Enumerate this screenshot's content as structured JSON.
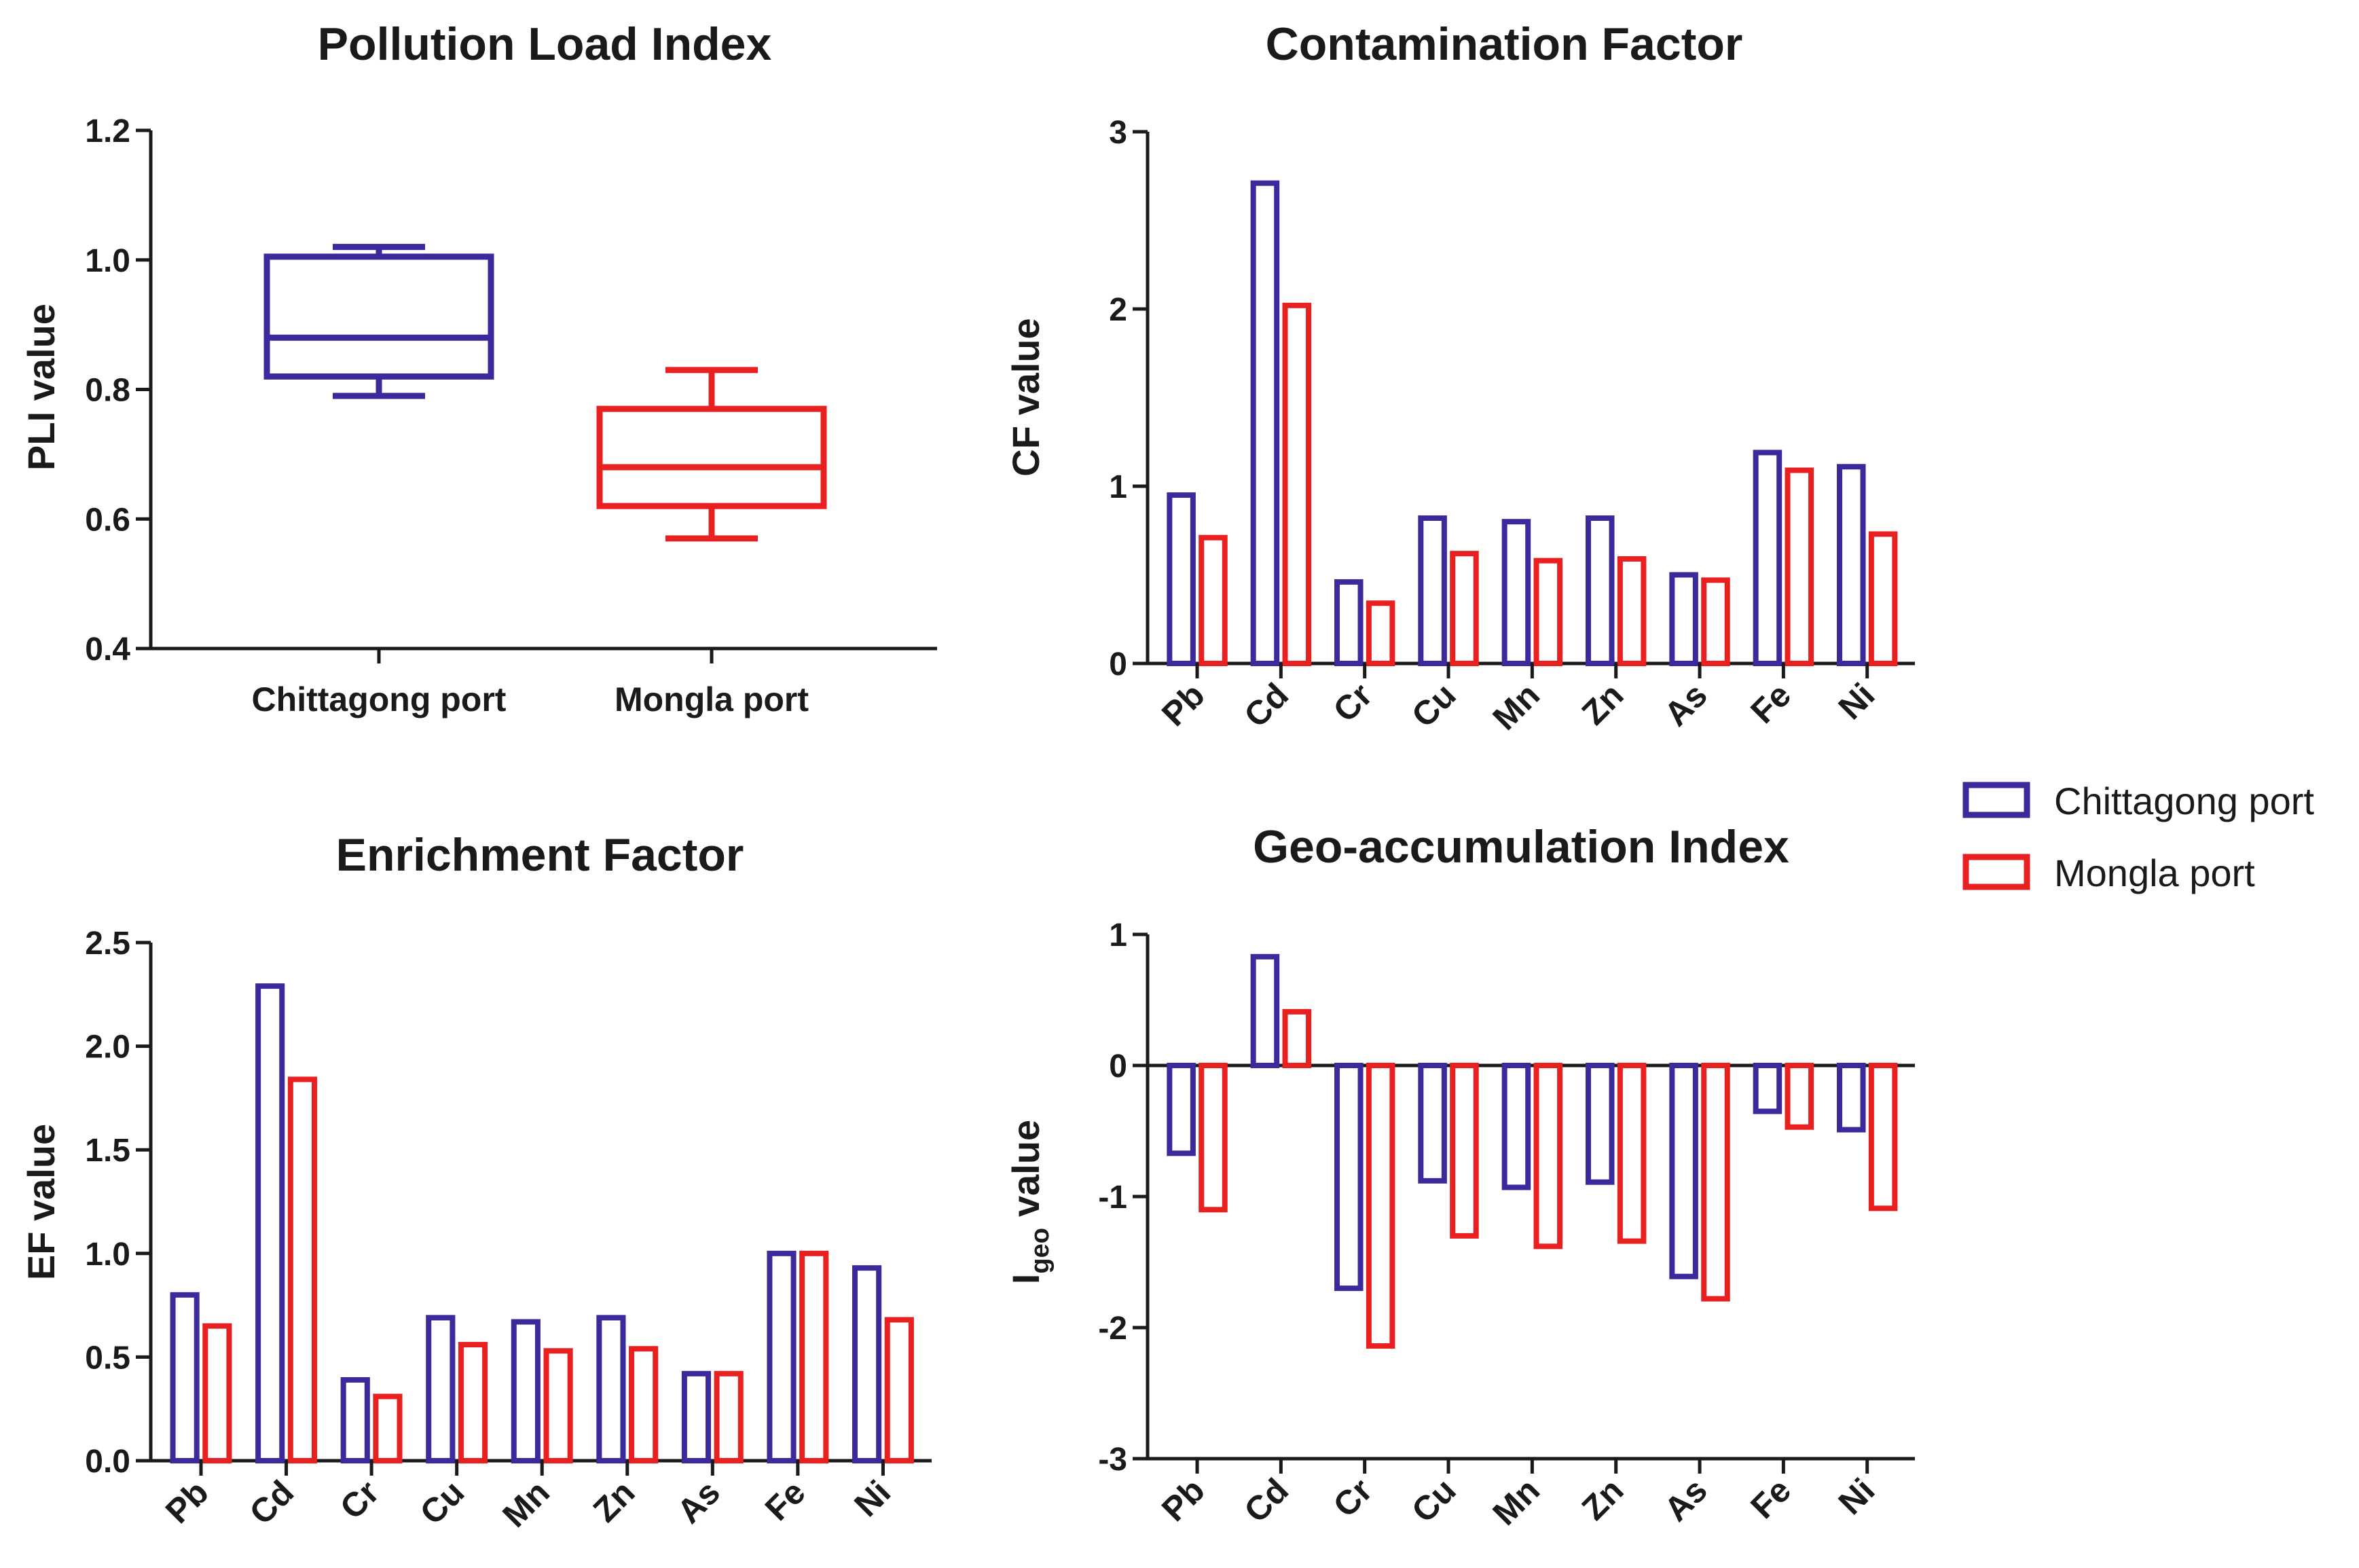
{
  "colors": {
    "chittagong": "#3a2a9c",
    "mongla": "#e8201f",
    "axis": "#1a1a1a"
  },
  "legend": {
    "entries": [
      "Chittagong port",
      "Mongla port"
    ]
  },
  "chart_data": [
    {
      "id": "pli",
      "type": "box",
      "title": "Pollution Load Index",
      "ylabel": "PLI value",
      "xlabel": "",
      "ylim": [
        0.4,
        1.2
      ],
      "yticks": [
        "0.4",
        "0.6",
        "0.8",
        "1.0",
        "1.2"
      ],
      "categories": [
        "Chittagong port",
        "Mongla port"
      ],
      "boxes": [
        {
          "name": "Chittagong port",
          "min": 0.79,
          "q1": 0.82,
          "median": 0.88,
          "q3": 1.005,
          "max": 1.02
        },
        {
          "name": "Mongla port",
          "min": 0.57,
          "q1": 0.62,
          "median": 0.68,
          "q3": 0.77,
          "max": 0.83
        }
      ]
    },
    {
      "id": "cf",
      "type": "bar",
      "title": "Contamination Factor",
      "ylabel": "CF value",
      "xlabel": "",
      "ylim": [
        0,
        3
      ],
      "yticks": [
        "0",
        "1",
        "2",
        "3"
      ],
      "categories": [
        "Pb",
        "Cd",
        "Cr",
        "Cu",
        "Mn",
        "Zn",
        "As",
        "Fe",
        "Ni"
      ],
      "series": [
        {
          "name": "Chittagong port",
          "values": [
            0.95,
            2.71,
            0.46,
            0.82,
            0.8,
            0.82,
            0.5,
            1.19,
            1.11
          ]
        },
        {
          "name": "Mongla port",
          "values": [
            0.71,
            2.02,
            0.34,
            0.62,
            0.58,
            0.59,
            0.47,
            1.09,
            0.73
          ]
        }
      ]
    },
    {
      "id": "ef",
      "type": "bar",
      "title": "Enrichment Factor",
      "ylabel": "EF value",
      "xlabel": "",
      "ylim": [
        0,
        2.5
      ],
      "yticks": [
        "0.0",
        "0.5",
        "1.0",
        "1.5",
        "2.0",
        "2.5"
      ],
      "categories": [
        "Pb",
        "Cd",
        "Cr",
        "Cu",
        "Mn",
        "Zn",
        "As",
        "Fe",
        "Ni"
      ],
      "series": [
        {
          "name": "Chittagong port",
          "values": [
            0.8,
            2.29,
            0.39,
            0.69,
            0.67,
            0.69,
            0.42,
            1.0,
            0.93
          ]
        },
        {
          "name": "Mongla port",
          "values": [
            0.65,
            1.84,
            0.31,
            0.56,
            0.53,
            0.54,
            0.42,
            1.0,
            0.68
          ]
        }
      ]
    },
    {
      "id": "igeo",
      "type": "bar",
      "title": "Geo-accumulation Index",
      "ylabel": "value",
      "ylabel_main": "I",
      "ylabel_sub": "geo",
      "xlabel": "",
      "ylim": [
        -3,
        1
      ],
      "yticks": [
        "-3",
        "-2",
        "-1",
        "0",
        "1"
      ],
      "categories": [
        "Pb",
        "Cd",
        "Cr",
        "Cu",
        "Mn",
        "Zn",
        "As",
        "Fe",
        "Ni"
      ],
      "series": [
        {
          "name": "Chittagong port",
          "values": [
            -0.67,
            0.83,
            -1.7,
            -0.88,
            -0.93,
            -0.89,
            -1.61,
            -0.35,
            -0.49
          ]
        },
        {
          "name": "Mongla port",
          "values": [
            -1.1,
            0.41,
            -2.14,
            -1.3,
            -1.38,
            -1.34,
            -1.78,
            -0.47,
            -1.09
          ]
        }
      ]
    }
  ]
}
